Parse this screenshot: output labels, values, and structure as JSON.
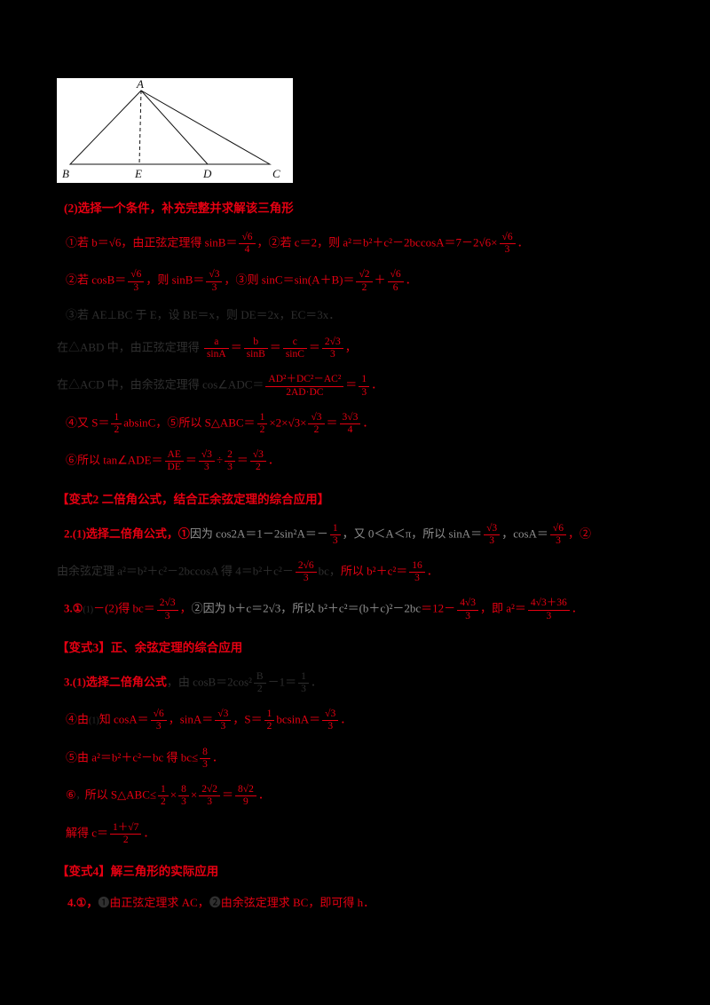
{
  "figure": {
    "labels": {
      "A": "A",
      "B": "B",
      "C": "C",
      "D": "D",
      "E": "E"
    }
  },
  "lines": [
    {
      "cls": "heading",
      "indent": 8,
      "segments": [
        {
          "t": "(2)选择一个条件，补充完整并求解该三角形",
          "c": "red",
          "b": true
        }
      ]
    },
    {
      "indent": 10,
      "segments": [
        {
          "t": "①若 b＝√6，由正弦定理得 sinB＝",
          "c": "red"
        },
        {
          "f": [
            "√6",
            "4"
          ],
          "c": "red"
        },
        {
          "t": "，②若 c＝2，则 a²＝b²＋c²－2bccosA＝7－2√6×",
          "c": "red"
        },
        {
          "f": [
            "√6",
            "3"
          ],
          "c": "red"
        },
        {
          "t": "．",
          "c": "red"
        }
      ]
    },
    {
      "indent": 10,
      "segments": [
        {
          "t": "②若 cosB＝",
          "c": "red"
        },
        {
          "f": [
            "√6",
            "3"
          ],
          "c": "red"
        },
        {
          "t": "，则 sinB＝",
          "c": "red"
        },
        {
          "f": [
            "√3",
            "3"
          ],
          "c": "red"
        },
        {
          "t": "，③则 sinC＝sin(A＋B)＝",
          "c": "red"
        },
        {
          "f": [
            "√2",
            "2"
          ],
          "c": "red"
        },
        {
          "t": "＋",
          "c": "red"
        },
        {
          "f": [
            "√6",
            "6"
          ],
          "c": "red"
        },
        {
          "t": "．",
          "c": "red"
        }
      ]
    },
    {
      "indent": 10,
      "segments": [
        {
          "t": "③若 AE⊥BC 于 E，设 BE＝x，则 DE＝2x，EC＝3x．",
          "c": "dim"
        }
      ]
    },
    {
      "indent": 0,
      "segments": [
        {
          "t": "在△ABD 中，由正弦定理得 ",
          "c": "dim"
        },
        {
          "f": [
            "a",
            "sinA"
          ],
          "c": "red"
        },
        {
          "t": "＝",
          "c": "red"
        },
        {
          "f": [
            "b",
            "sinB"
          ],
          "c": "red"
        },
        {
          "t": "＝",
          "c": "red"
        },
        {
          "f": [
            "c",
            "sinC"
          ],
          "c": "red"
        },
        {
          "t": "＝",
          "c": "red"
        },
        {
          "f": [
            "2√3",
            "3"
          ],
          "c": "red"
        },
        {
          "t": "，",
          "c": "red"
        }
      ]
    },
    {
      "indent": 0,
      "segments": [
        {
          "t": "在△ACD 中，由余弦定理得 cos∠ADC＝",
          "c": "dim"
        },
        {
          "f": [
            "AD²＋DC²－AC²",
            "2AD·DC"
          ],
          "c": "red"
        },
        {
          "t": "＝",
          "c": "red"
        },
        {
          "f": [
            "1",
            "3"
          ],
          "c": "red"
        },
        {
          "t": "．",
          "c": "red"
        }
      ]
    },
    {
      "indent": 10,
      "segments": [
        {
          "t": "④又 S＝",
          "c": "red"
        },
        {
          "f": [
            "1",
            "2"
          ],
          "c": "red"
        },
        {
          "t": "absinC，⑤所以 S△ABC＝",
          "c": "red"
        },
        {
          "f": [
            "1",
            "2"
          ],
          "c": "red"
        },
        {
          "t": "×2×√3×",
          "c": "red"
        },
        {
          "f": [
            "√3",
            "2"
          ],
          "c": "red"
        },
        {
          "t": "＝",
          "c": "red"
        },
        {
          "f": [
            "3√3",
            "4"
          ],
          "c": "red"
        },
        {
          "t": "．",
          "c": "red"
        }
      ]
    },
    {
      "indent": 10,
      "segments": [
        {
          "t": "⑥所以 tan∠ADE＝",
          "c": "red"
        },
        {
          "f": [
            "AE",
            "DE"
          ],
          "c": "red"
        },
        {
          "t": "＝",
          "c": "red"
        },
        {
          "f": [
            "√3",
            "3"
          ],
          "c": "red"
        },
        {
          "t": "÷",
          "c": "red"
        },
        {
          "f": [
            "2",
            "3"
          ],
          "c": "red"
        },
        {
          "t": "＝",
          "c": "red"
        },
        {
          "f": [
            "√3",
            "2"
          ],
          "c": "red"
        },
        {
          "t": "．",
          "c": "red"
        }
      ]
    },
    {
      "cls": "heading",
      "indent": 0,
      "segments": [
        {
          "t": "【变式2 二倍角公式，结合正余弦定理的综合应用】",
          "c": "red",
          "b": true
        }
      ]
    },
    {
      "indent": 8,
      "segments": [
        {
          "t": "2.(1)选择二倍角公式，①",
          "c": "red",
          "b": true
        },
        {
          "t": "因为 cos2A＝1－2sin²A＝－",
          "c": "gray"
        },
        {
          "f": [
            "1",
            "3"
          ],
          "c": "red"
        },
        {
          "t": "，又 0＜A＜π，所以 sinA＝",
          "c": "gray"
        },
        {
          "f": [
            "√3",
            "3"
          ],
          "c": "red"
        },
        {
          "t": "，cosA＝",
          "c": "gray"
        },
        {
          "f": [
            "√6",
            "3"
          ],
          "c": "red"
        },
        {
          "t": "，②",
          "c": "red"
        }
      ]
    },
    {
      "indent": 0,
      "segments": [
        {
          "t": "由余弦定理 a²＝b²＋c²－2bccosA 得 4＝b²＋c²－",
          "c": "dim"
        },
        {
          "f": [
            "2√6",
            "3"
          ],
          "c": "red"
        },
        {
          "t": "bc，",
          "c": "dim"
        },
        {
          "t": "所以 b²＋c²＝",
          "c": "red"
        },
        {
          "f": [
            "16",
            "3"
          ],
          "c": "red"
        },
        {
          "t": "．",
          "c": "red"
        }
      ]
    },
    {
      "indent": 8,
      "segments": [
        {
          "t": "3.①",
          "c": "red",
          "b": true
        },
        {
          "t": "(1)",
          "c": "dim",
          "sm": true
        },
        {
          "t": "－(2)得 bc＝",
          "c": "red"
        },
        {
          "f": [
            "2√3",
            "3"
          ],
          "c": "red"
        },
        {
          "t": "，",
          "c": "red"
        },
        {
          "t": "②因为 b＋c＝2√3，所以 b²＋c²＝(b＋c)²－2bc",
          "c": "gray"
        },
        {
          "t": "＝12－",
          "c": "red"
        },
        {
          "f": [
            "4√3",
            "3"
          ],
          "c": "red"
        },
        {
          "t": "，即 a²＝",
          "c": "red"
        },
        {
          "f": [
            "4√3＋36",
            "3"
          ],
          "c": "red"
        },
        {
          "t": "．",
          "c": "red"
        }
      ]
    },
    {
      "cls": "heading",
      "indent": 0,
      "segments": [
        {
          "t": "【变式3】正、余弦定理的综合应用",
          "c": "red",
          "b": true
        }
      ]
    },
    {
      "indent": 8,
      "segments": [
        {
          "t": "3.(1)选择二倍角公式",
          "c": "red",
          "b": true
        },
        {
          "t": "，由 cosB＝2cos²",
          "c": "dim"
        },
        {
          "f": [
            "B",
            "2"
          ],
          "c": "dim"
        },
        {
          "t": "－1＝",
          "c": "dim"
        },
        {
          "f": [
            "1",
            "3"
          ],
          "c": "dim"
        },
        {
          "t": "．",
          "c": "dim"
        }
      ]
    },
    {
      "indent": 10,
      "segments": [
        {
          "t": "④由",
          "c": "red"
        },
        {
          "t": "(1)",
          "c": "dim",
          "sm": true
        },
        {
          "t": "知 cosA＝",
          "c": "red"
        },
        {
          "f": [
            "√6",
            "3"
          ],
          "c": "red"
        },
        {
          "t": "，sinA＝",
          "c": "red"
        },
        {
          "f": [
            "√3",
            "3"
          ],
          "c": "red"
        },
        {
          "t": "，S＝",
          "c": "red"
        },
        {
          "f": [
            "1",
            "2"
          ],
          "c": "red"
        },
        {
          "t": "bcsinA＝",
          "c": "red"
        },
        {
          "f": [
            "√3",
            "3"
          ],
          "c": "red"
        },
        {
          "t": "．",
          "c": "red"
        }
      ]
    },
    {
      "indent": 10,
      "segments": [
        {
          "t": "⑤由 a²＝b²＋c²－bc 得 bc≤",
          "c": "red"
        },
        {
          "f": [
            "8",
            "3"
          ],
          "c": "red"
        },
        {
          "t": "．",
          "c": "red"
        }
      ]
    },
    {
      "indent": 10,
      "segments": [
        {
          "t": "⑥",
          "c": "red"
        },
        {
          "t": "，",
          "c": "dim",
          "sm": true
        },
        {
          "t": "所以 S△ABC≤",
          "c": "red"
        },
        {
          "f": [
            "1",
            "2"
          ],
          "c": "red"
        },
        {
          "t": "×",
          "c": "red"
        },
        {
          "f": [
            "8",
            "3"
          ],
          "c": "red"
        },
        {
          "t": "×",
          "c": "red"
        },
        {
          "f": [
            "2√2",
            "3"
          ],
          "c": "red"
        },
        {
          "t": "＝",
          "c": "red"
        },
        {
          "f": [
            "8√2",
            "9"
          ],
          "c": "red"
        },
        {
          "t": "．",
          "c": "red"
        }
      ]
    },
    {
      "indent": 10,
      "segments": [
        {
          "t": "解得 c＝",
          "c": "red"
        },
        {
          "f": [
            "1＋√7",
            "2"
          ],
          "c": "red"
        },
        {
          "t": "．",
          "c": "red"
        }
      ]
    },
    {
      "cls": "heading",
      "indent": 0,
      "segments": [
        {
          "t": "【变式4】解三角形的实际应用",
          "c": "red",
          "b": true
        }
      ]
    },
    {
      "indent": 12,
      "segments": [
        {
          "t": "4.①，",
          "c": "red",
          "b": true
        },
        {
          "t": "❶",
          "c": "dim"
        },
        {
          "t": "由正弦定理求 AC，",
          "c": "red"
        },
        {
          "t": "❷",
          "c": "dim"
        },
        {
          "t": "由余弦定理求 BC，",
          "c": "red"
        },
        {
          "t": "即可得 h．",
          "c": "red"
        }
      ]
    }
  ]
}
